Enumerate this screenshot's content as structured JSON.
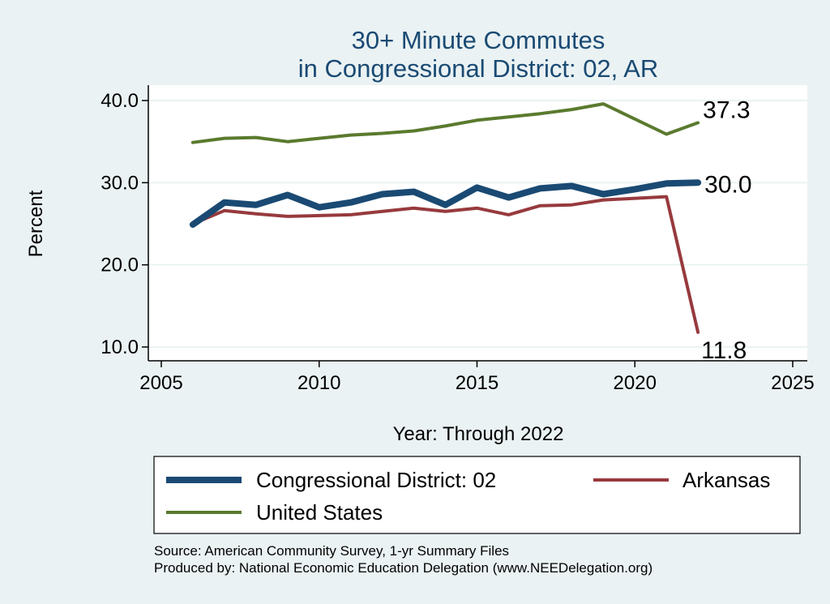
{
  "chart_data": {
    "type": "line",
    "title": "30+ Minute Commutes",
    "subtitle": "in Congressional District:  02, AR",
    "xlabel": "Year: Through 2022",
    "ylabel": "Percent",
    "xlim": [
      2005,
      2025
    ],
    "ylim": [
      10,
      40
    ],
    "x_ticks": [
      "2005",
      "2010",
      "2015",
      "2020",
      "2025"
    ],
    "y_ticks": [
      "10.0",
      "20.0",
      "30.0",
      "40.0"
    ],
    "grid": true,
    "legend_position": "bottom",
    "series": [
      {
        "name": "Congressional District:  02",
        "color": "#1a4a73",
        "end_label": "30.0",
        "x": [
          2006,
          2007,
          2008,
          2009,
          2010,
          2011,
          2012,
          2013,
          2014,
          2015,
          2016,
          2017,
          2018,
          2019,
          2020,
          2021,
          2022
        ],
        "values": [
          24.9,
          27.6,
          27.3,
          28.5,
          27.0,
          27.6,
          28.6,
          28.9,
          27.3,
          29.4,
          28.2,
          29.3,
          29.6,
          28.6,
          29.2,
          29.9,
          30.0
        ]
      },
      {
        "name": "Arkansas",
        "color": "#973a3e",
        "end_label": "11.8",
        "x": [
          2006,
          2007,
          2008,
          2009,
          2010,
          2011,
          2012,
          2013,
          2014,
          2015,
          2016,
          2017,
          2018,
          2019,
          2020,
          2021,
          2022
        ],
        "values": [
          25.0,
          26.6,
          26.2,
          25.9,
          26.0,
          26.1,
          26.5,
          26.9,
          26.5,
          26.9,
          26.1,
          27.2,
          27.3,
          27.9,
          28.1,
          28.3,
          11.8
        ]
      },
      {
        "name": "United States",
        "color": "#5a7a2e",
        "end_label": "37.3",
        "x": [
          2006,
          2007,
          2008,
          2009,
          2010,
          2011,
          2012,
          2013,
          2014,
          2015,
          2016,
          2017,
          2018,
          2019,
          2020,
          2021,
          2022
        ],
        "values": [
          34.9,
          35.4,
          35.5,
          35.0,
          35.4,
          35.8,
          36.0,
          36.3,
          36.9,
          37.6,
          38.0,
          38.4,
          38.9,
          39.6,
          null,
          35.9,
          37.3
        ]
      }
    ]
  },
  "source_lines": [
    "Source: American Community Survey, 1-yr Summary Files",
    "Produced by: National Economic Education Delegation (www.NEEDelegation.org)"
  ]
}
